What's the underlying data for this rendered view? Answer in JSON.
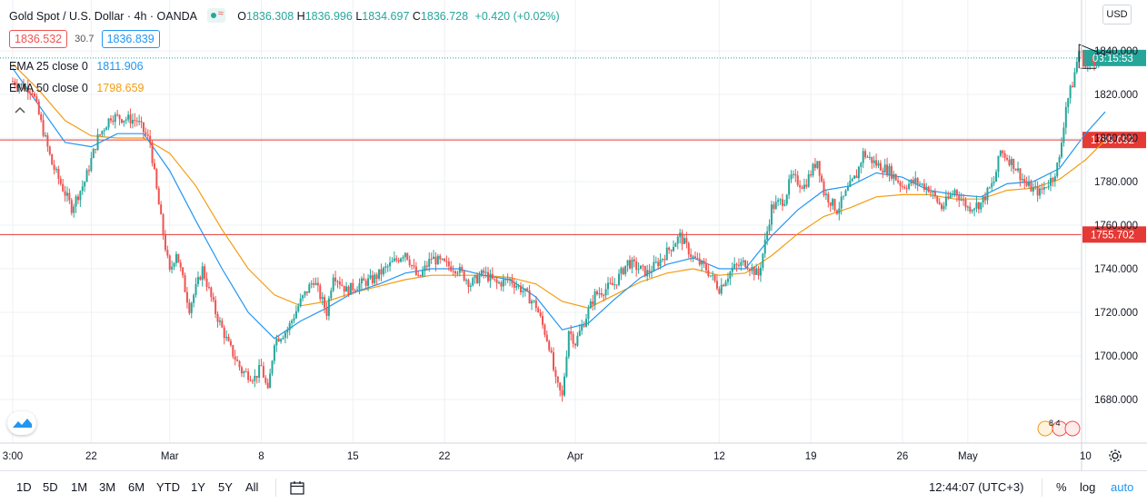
{
  "header": {
    "symbol": "Gold Spot / U.S. Dollar · 4h · OANDA",
    "ohlc": {
      "o": "1836.308",
      "h": "1836.996",
      "l": "1834.697",
      "c": "1836.728"
    },
    "ohlc_prefix": {
      "o": "O",
      "h": "H",
      "l": "L",
      "c": "C"
    },
    "change": "+0.420 (+0.02%)",
    "sell_price": "1836.532",
    "spread": "30.7",
    "buy_price": "1836.839"
  },
  "indicators": {
    "ema25": {
      "label": "EMA 25 close 0",
      "value": "1811.906",
      "color": "#2196f3"
    },
    "ema50": {
      "label": "EMA 50 close 0",
      "value": "1798.659",
      "color": "#f39c12"
    }
  },
  "price_axis": {
    "currency_label": "USD",
    "countdown": "03:15:53",
    "current_price": 1836.728
  },
  "horizontal_levels": [
    {
      "value": 1799.092,
      "label": "1799.092",
      "color": "#e53935"
    },
    {
      "value": 1755.702,
      "label": "1755.702",
      "color": "#e53935"
    }
  ],
  "bottom_bar": {
    "ranges": [
      "1D",
      "5D",
      "1M",
      "3M",
      "6M",
      "YTD",
      "1Y",
      "5Y",
      "All"
    ],
    "clock": "12:44:07 (UTC+3)",
    "options": {
      "percent": "%",
      "log": "log",
      "auto": "auto"
    }
  },
  "events_badge": "8 4",
  "colors": {
    "up": "#26a69a",
    "down": "#ef5350",
    "grid": "#eef0f3"
  },
  "chart_data": {
    "type": "candlestick",
    "title": "Gold Spot / U.S. Dollar · 4h · OANDA",
    "ylim": [
      1662,
      1848
    ],
    "y_ticks": [
      1680,
      1700,
      1720,
      1740,
      1760,
      1780,
      1800,
      1820,
      1840
    ],
    "y_tick_labels": [
      "1680.000",
      "1700.000",
      "1720.000",
      "1740.000",
      "1760.000",
      "1780.000",
      "1800.000",
      "1820.000",
      "1840.000"
    ],
    "x_labels": [
      {
        "label": "3:00",
        "day": 0
      },
      {
        "label": "22",
        "day": 6
      },
      {
        "label": "Mar",
        "day": 12
      },
      {
        "label": "8",
        "day": 19
      },
      {
        "label": "15",
        "day": 26
      },
      {
        "label": "22",
        "day": 33
      },
      {
        "label": "Apr",
        "day": 43
      },
      {
        "label": "12",
        "day": 54
      },
      {
        "label": "19",
        "day": 61
      },
      {
        "label": "26",
        "day": 68
      },
      {
        "label": "May",
        "day": 73
      },
      {
        "label": "10",
        "day": 82
      }
    ],
    "close_path": [
      [
        0,
        1826
      ],
      [
        1.5,
        1822
      ],
      [
        3,
        1788
      ],
      [
        4.5,
        1768
      ],
      [
        5.5,
        1780
      ],
      [
        6.5,
        1800
      ],
      [
        7.5,
        1810
      ],
      [
        9.5,
        1808
      ],
      [
        10.5,
        1798
      ],
      [
        11,
        1776
      ],
      [
        11.5,
        1756
      ],
      [
        12,
        1738
      ],
      [
        12.5,
        1748
      ],
      [
        13.5,
        1722
      ],
      [
        14.5,
        1740
      ],
      [
        15.5,
        1720
      ],
      [
        16.5,
        1705
      ],
      [
        17.5,
        1693
      ],
      [
        18.5,
        1690
      ],
      [
        19,
        1695
      ],
      [
        19.5,
        1683
      ],
      [
        20,
        1707
      ],
      [
        21,
        1712
      ],
      [
        22,
        1725
      ],
      [
        23,
        1735
      ],
      [
        24,
        1720
      ],
      [
        24.5,
        1738
      ],
      [
        25.5,
        1730
      ],
      [
        26.5,
        1733
      ],
      [
        27.5,
        1735
      ],
      [
        28.5,
        1740
      ],
      [
        29.5,
        1745
      ],
      [
        30,
        1748
      ],
      [
        31,
        1735
      ],
      [
        32,
        1745
      ],
      [
        33,
        1742
      ],
      [
        34,
        1740
      ],
      [
        35,
        1733
      ],
      [
        36,
        1738
      ],
      [
        37,
        1733
      ],
      [
        38,
        1735
      ],
      [
        39,
        1730
      ],
      [
        40,
        1723
      ],
      [
        41,
        1705
      ],
      [
        41.5,
        1688
      ],
      [
        42,
        1681
      ],
      [
        42.5,
        1712
      ],
      [
        43,
        1706
      ],
      [
        44.5,
        1728
      ],
      [
        46,
        1733
      ],
      [
        47,
        1743
      ],
      [
        48.5,
        1738
      ],
      [
        49.5,
        1744
      ],
      [
        51,
        1755
      ],
      [
        52,
        1745
      ],
      [
        53,
        1740
      ],
      [
        54,
        1731
      ],
      [
        55,
        1740
      ],
      [
        56,
        1743
      ],
      [
        57,
        1737
      ],
      [
        57.5,
        1752
      ],
      [
        58,
        1768
      ],
      [
        59,
        1772
      ],
      [
        59.5,
        1782
      ],
      [
        60.5,
        1778
      ],
      [
        61.5,
        1790
      ],
      [
        62,
        1775
      ],
      [
        63,
        1767
      ],
      [
        64,
        1778
      ],
      [
        64.5,
        1783
      ],
      [
        65,
        1793
      ],
      [
        66,
        1788
      ],
      [
        67,
        1785
      ],
      [
        68,
        1778
      ],
      [
        69,
        1780
      ],
      [
        70,
        1777
      ],
      [
        71,
        1768
      ],
      [
        72,
        1776
      ],
      [
        73,
        1768
      ],
      [
        74,
        1770
      ],
      [
        75,
        1780
      ],
      [
        75.5,
        1794
      ],
      [
        76.5,
        1788
      ],
      [
        77.5,
        1778
      ],
      [
        78.5,
        1775
      ],
      [
        79.5,
        1782
      ],
      [
        80,
        1790
      ],
      [
        80.5,
        1815
      ],
      [
        81,
        1825
      ],
      [
        81.5,
        1840
      ],
      [
        82,
        1833
      ],
      [
        82.5,
        1835
      ],
      [
        83,
        1837
      ]
    ],
    "ema25_path": [
      [
        0,
        1832
      ],
      [
        2,
        1815
      ],
      [
        4,
        1798
      ],
      [
        6,
        1796
      ],
      [
        8,
        1802
      ],
      [
        10,
        1802
      ],
      [
        12,
        1785
      ],
      [
        14,
        1762
      ],
      [
        16,
        1740
      ],
      [
        18,
        1720
      ],
      [
        20,
        1708
      ],
      [
        22,
        1716
      ],
      [
        24,
        1722
      ],
      [
        26,
        1729
      ],
      [
        28,
        1733
      ],
      [
        30,
        1738
      ],
      [
        32,
        1740
      ],
      [
        34,
        1740
      ],
      [
        36,
        1737
      ],
      [
        38,
        1735
      ],
      [
        40,
        1727
      ],
      [
        42,
        1712
      ],
      [
        44,
        1715
      ],
      [
        46,
        1726
      ],
      [
        48,
        1736
      ],
      [
        50,
        1742
      ],
      [
        52,
        1745
      ],
      [
        54,
        1740
      ],
      [
        56,
        1740
      ],
      [
        58,
        1755
      ],
      [
        60,
        1767
      ],
      [
        62,
        1776
      ],
      [
        64,
        1778
      ],
      [
        66,
        1784
      ],
      [
        68,
        1782
      ],
      [
        70,
        1776
      ],
      [
        72,
        1774
      ],
      [
        74,
        1773
      ],
      [
        76,
        1779
      ],
      [
        78,
        1780
      ],
      [
        80,
        1786
      ],
      [
        82,
        1802
      ],
      [
        83.5,
        1812
      ]
    ],
    "ema50_path": [
      [
        0,
        1834
      ],
      [
        2,
        1822
      ],
      [
        4,
        1808
      ],
      [
        6,
        1801
      ],
      [
        8,
        1800
      ],
      [
        10,
        1800
      ],
      [
        12,
        1793
      ],
      [
        14,
        1778
      ],
      [
        16,
        1758
      ],
      [
        18,
        1740
      ],
      [
        20,
        1728
      ],
      [
        22,
        1723
      ],
      [
        24,
        1725
      ],
      [
        26,
        1729
      ],
      [
        28,
        1732
      ],
      [
        30,
        1735
      ],
      [
        32,
        1737
      ],
      [
        34,
        1737
      ],
      [
        36,
        1737
      ],
      [
        38,
        1736
      ],
      [
        40,
        1733
      ],
      [
        42,
        1725
      ],
      [
        44,
        1722
      ],
      [
        46,
        1728
      ],
      [
        48,
        1734
      ],
      [
        50,
        1738
      ],
      [
        52,
        1740
      ],
      [
        54,
        1737
      ],
      [
        56,
        1738
      ],
      [
        58,
        1746
      ],
      [
        60,
        1756
      ],
      [
        62,
        1764
      ],
      [
        64,
        1768
      ],
      [
        66,
        1773
      ],
      [
        68,
        1774
      ],
      [
        70,
        1774
      ],
      [
        72,
        1772
      ],
      [
        74,
        1772
      ],
      [
        76,
        1776
      ],
      [
        78,
        1777
      ],
      [
        80,
        1781
      ],
      [
        82,
        1790
      ],
      [
        83.5,
        1799
      ]
    ],
    "trendlines": [
      {
        "from": [
          81.5,
          1843
        ],
        "to": [
          83.5,
          1838
        ]
      },
      {
        "from": [
          81.5,
          1843
        ],
        "to": [
          81.5,
          1832
        ]
      },
      {
        "from": [
          81.6,
          1832
        ],
        "to": [
          82.8,
          1832
        ]
      }
    ],
    "x_range": [
      0,
      87
    ]
  }
}
